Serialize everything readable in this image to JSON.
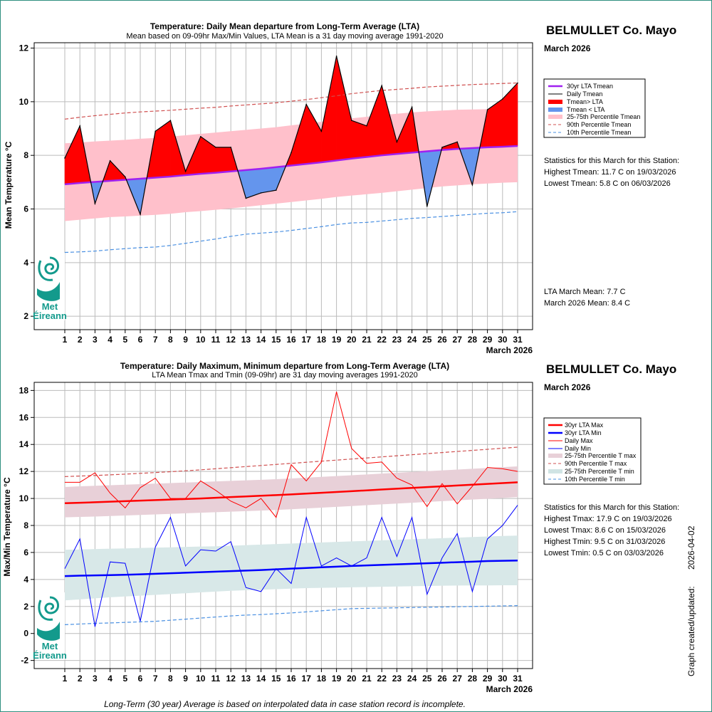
{
  "station": "BELMULLET Co. Mayo",
  "period_label": "March 2026",
  "footer_note": "Long-Term (30 year) Average is based on interpolated data in case station record is incomplete.",
  "created_label": "Graph created/updated:",
  "created_date": "2026-04-02",
  "logo": {
    "line1": "Met",
    "line2": "Éireann"
  },
  "colors": {
    "above": "#ff0000",
    "below": "#6495ed",
    "band_mean": "#ffc0cb",
    "lta_mean": "#a020f0",
    "max": "#ff0000",
    "min": "#0000ff",
    "band_max": "#e8d0d8",
    "band_min": "#d8e8e8",
    "p90": "#d05050",
    "p10": "#4a90e2"
  },
  "top": {
    "title": "Temperature: Daily Mean departure from Long-Term Average (LTA)",
    "subtitle": "Mean based on 09-09hr Max/Min Values, LTA Mean is a 31 day moving average 1991-2020",
    "stats_heading": "Statistics for this March for this Station:",
    "stats": [
      "Highest Tmean: 11.7 C on 19/03/2026",
      "Lowest Tmean: 5.8 C on 06/03/2026"
    ],
    "summary": [
      "LTA March Mean: 7.7 C",
      "March 2026 Mean: 8.4 C"
    ],
    "legend": [
      "30yr LTA Tmean",
      "Daily Tmean",
      "Tmean> LTA",
      "Tmean < LTA",
      "25-75th Percentile Tmean",
      "90th Percentile Tmean",
      "10th Percentile Tmean"
    ]
  },
  "bottom": {
    "title": "Temperature: Daily Maximum, Minimum departure from Long-Term Average (LTA)",
    "subtitle": "LTA Mean Tmax and Tmin (09-09hr) are 31 day moving averages 1991-2020",
    "stats_heading": "Statistics for this March for this Station:",
    "stats": [
      "Highest Tmax: 17.9 C on 19/03/2026",
      "Lowest Tmax: 8.6 C on 15/03/2026",
      "Highest Tmin: 9.5 C on 31/03/2026",
      "Lowest Tmin: 0.5 C on 03/03/2026"
    ],
    "legend": [
      "30yr LTA Max",
      "30yr LTA Min",
      "Daily Max",
      "Daily Min",
      "25-75th Percentile T max",
      "90th Percentile T max",
      "25-75th Percentile T min",
      "10th Percentile T min"
    ]
  },
  "chart_data": [
    {
      "type": "line",
      "title": "Temperature: Daily Mean departure from Long-Term Average (LTA)",
      "xlabel": "March 2026",
      "ylabel": "Mean Temperature °C",
      "ylim": [
        1.5,
        12.2
      ],
      "yticks": [
        2,
        4,
        6,
        8,
        10,
        12
      ],
      "x": [
        1,
        2,
        3,
        4,
        5,
        6,
        7,
        8,
        9,
        10,
        11,
        12,
        13,
        14,
        15,
        16,
        17,
        18,
        19,
        20,
        21,
        22,
        23,
        24,
        25,
        26,
        27,
        28,
        29,
        30,
        31
      ],
      "series": [
        {
          "name": "Daily Tmean",
          "values": [
            7.9,
            9.1,
            6.2,
            7.8,
            7.2,
            5.8,
            8.9,
            9.3,
            7.4,
            8.7,
            8.3,
            8.3,
            6.4,
            6.6,
            6.7,
            8.1,
            9.9,
            8.9,
            11.7,
            9.3,
            9.1,
            10.6,
            8.5,
            9.8,
            6.1,
            8.3,
            8.5,
            6.9,
            9.7,
            10.1,
            10.7
          ]
        },
        {
          "name": "30yr LTA Tmean",
          "values": [
            6.92,
            6.97,
            7.01,
            7.05,
            7.09,
            7.13,
            7.17,
            7.21,
            7.26,
            7.31,
            7.35,
            7.4,
            7.45,
            7.5,
            7.56,
            7.62,
            7.68,
            7.74,
            7.81,
            7.88,
            7.94,
            8.0,
            8.05,
            8.1,
            8.15,
            8.2,
            8.24,
            8.27,
            8.3,
            8.32,
            8.35
          ]
        },
        {
          "name": "25th Percentile Tmean",
          "values": [
            5.55,
            5.6,
            5.65,
            5.7,
            5.72,
            5.75,
            5.78,
            5.82,
            5.88,
            5.92,
            5.97,
            6.02,
            6.08,
            6.14,
            6.2,
            6.26,
            6.32,
            6.38,
            6.45,
            6.5,
            6.55,
            6.6,
            6.66,
            6.72,
            6.78,
            6.84,
            6.88,
            6.92,
            6.95,
            6.98,
            7.0
          ]
        },
        {
          "name": "75th Percentile Tmean",
          "values": [
            8.45,
            8.48,
            8.52,
            8.55,
            8.58,
            8.62,
            8.65,
            8.7,
            8.75,
            8.8,
            8.85,
            8.9,
            8.95,
            9.0,
            9.05,
            9.12,
            9.18,
            9.25,
            9.32,
            9.38,
            9.44,
            9.5,
            9.55,
            9.6,
            9.64,
            9.67,
            9.7,
            9.71,
            9.72,
            9.72,
            9.72
          ]
        },
        {
          "name": "90th Percentile Tmean",
          "values": [
            9.35,
            9.42,
            9.48,
            9.53,
            9.58,
            9.62,
            9.65,
            9.68,
            9.72,
            9.76,
            9.79,
            9.84,
            9.88,
            9.92,
            9.96,
            10.02,
            10.08,
            10.15,
            10.22,
            10.3,
            10.36,
            10.42,
            10.46,
            10.5,
            10.55,
            10.58,
            10.61,
            10.64,
            10.66,
            10.68,
            10.7
          ]
        },
        {
          "name": "10th Percentile Tmean",
          "values": [
            4.38,
            4.4,
            4.43,
            4.48,
            4.52,
            4.56,
            4.58,
            4.64,
            4.72,
            4.8,
            4.88,
            4.98,
            5.06,
            5.1,
            5.14,
            5.2,
            5.27,
            5.34,
            5.42,
            5.48,
            5.5,
            5.55,
            5.6,
            5.65,
            5.68,
            5.72,
            5.76,
            5.8,
            5.84,
            5.86,
            5.9
          ]
        }
      ]
    },
    {
      "type": "line",
      "title": "Temperature: Daily Maximum, Minimum departure from Long-Term Average (LTA)",
      "xlabel": "March 2026",
      "ylabel": "Max/Min Temperature °C",
      "ylim": [
        -2.6,
        18.6
      ],
      "yticks": [
        -2,
        0,
        2,
        4,
        6,
        8,
        10,
        12,
        14,
        16,
        18
      ],
      "x": [
        1,
        2,
        3,
        4,
        5,
        6,
        7,
        8,
        9,
        10,
        11,
        12,
        13,
        14,
        15,
        16,
        17,
        18,
        19,
        20,
        21,
        22,
        23,
        24,
        25,
        26,
        27,
        28,
        29,
        30,
        31
      ],
      "series": [
        {
          "name": "Daily Max",
          "values": [
            11.2,
            11.2,
            11.9,
            10.4,
            9.3,
            10.8,
            11.5,
            10.0,
            10.0,
            11.3,
            10.6,
            9.8,
            9.3,
            10.0,
            8.6,
            12.5,
            11.3,
            12.7,
            17.9,
            13.7,
            12.6,
            12.7,
            11.5,
            11.0,
            9.4,
            11.1,
            9.6,
            10.9,
            12.3,
            12.2,
            12.0
          ]
        },
        {
          "name": "Daily Min",
          "values": [
            4.8,
            7.0,
            0.5,
            5.3,
            5.2,
            0.9,
            6.4,
            8.6,
            5.0,
            6.2,
            6.1,
            6.8,
            3.4,
            3.1,
            4.8,
            3.7,
            8.6,
            5.0,
            5.6,
            5.0,
            5.6,
            8.6,
            5.7,
            8.6,
            2.9,
            5.6,
            7.4,
            3.1,
            7.0,
            8.0,
            9.5
          ]
        },
        {
          "name": "30yr LTA Max",
          "values": [
            9.65,
            9.68,
            9.72,
            9.76,
            9.8,
            9.84,
            9.88,
            9.92,
            9.96,
            10.0,
            10.05,
            10.1,
            10.15,
            10.2,
            10.25,
            10.3,
            10.36,
            10.42,
            10.48,
            10.54,
            10.6,
            10.66,
            10.72,
            10.78,
            10.84,
            10.9,
            10.96,
            11.02,
            11.08,
            11.14,
            11.2
          ]
        },
        {
          "name": "30yr LTA Min",
          "values": [
            4.25,
            4.28,
            4.3,
            4.32,
            4.35,
            4.38,
            4.42,
            4.46,
            4.5,
            4.54,
            4.58,
            4.62,
            4.66,
            4.7,
            4.75,
            4.8,
            4.85,
            4.9,
            4.95,
            5.0,
            5.04,
            5.08,
            5.12,
            5.16,
            5.2,
            5.24,
            5.28,
            5.32,
            5.36,
            5.38,
            5.4
          ]
        },
        {
          "name": "25th Percentile T max",
          "values": [
            8.6,
            8.63,
            8.66,
            8.7,
            8.74,
            8.78,
            8.82,
            8.86,
            8.9,
            8.94,
            8.98,
            9.02,
            9.06,
            9.1,
            9.15,
            9.2,
            9.26,
            9.32,
            9.38,
            9.44,
            9.5,
            9.56,
            9.62,
            9.68,
            9.74,
            9.8,
            9.86,
            9.92,
            9.98,
            10.04,
            10.1
          ]
        },
        {
          "name": "75th Percentile T max",
          "values": [
            10.85,
            10.9,
            10.94,
            10.98,
            11.02,
            11.06,
            11.1,
            11.14,
            11.18,
            11.22,
            11.26,
            11.3,
            11.34,
            11.38,
            11.43,
            11.48,
            11.54,
            11.6,
            11.66,
            11.72,
            11.78,
            11.84,
            11.9,
            11.96,
            12.02,
            12.08,
            12.14,
            12.2,
            12.26,
            12.32,
            12.38
          ]
        },
        {
          "name": "90th Percentile T max",
          "values": [
            11.62,
            11.66,
            11.7,
            11.75,
            11.8,
            11.86,
            11.92,
            11.98,
            12.05,
            12.12,
            12.2,
            12.28,
            12.36,
            12.44,
            12.52,
            12.6,
            12.68,
            12.76,
            12.84,
            12.92,
            13.0,
            13.08,
            13.16,
            13.24,
            13.32,
            13.4,
            13.48,
            13.56,
            13.64,
            13.72,
            13.8
          ]
        },
        {
          "name": "25th Percentile T min",
          "values": [
            2.45,
            2.52,
            2.6,
            2.68,
            2.74,
            2.8,
            2.86,
            2.92,
            2.98,
            3.04,
            3.1,
            3.16,
            3.2,
            3.24,
            3.28,
            3.32,
            3.36,
            3.38,
            3.4,
            3.42,
            3.44,
            3.46,
            3.48,
            3.5,
            3.52,
            3.54,
            3.55,
            3.56,
            3.56,
            3.57,
            3.57
          ]
        },
        {
          "name": "75th Percentile T min",
          "values": [
            6.2,
            6.22,
            6.25,
            6.28,
            6.3,
            6.33,
            6.36,
            6.38,
            6.41,
            6.44,
            6.46,
            6.5,
            6.54,
            6.58,
            6.62,
            6.66,
            6.7,
            6.74,
            6.78,
            6.82,
            6.86,
            6.9,
            6.94,
            6.98,
            7.02,
            7.06,
            7.1,
            7.14,
            7.18,
            7.22,
            7.25
          ]
        },
        {
          "name": "10th Percentile T min",
          "values": [
            0.65,
            0.7,
            0.75,
            0.78,
            0.82,
            0.86,
            0.9,
            0.98,
            1.06,
            1.14,
            1.22,
            1.3,
            1.36,
            1.4,
            1.46,
            1.52,
            1.6,
            1.68,
            1.76,
            1.84,
            1.86,
            1.88,
            1.9,
            1.92,
            1.94,
            1.96,
            1.98,
            2.0,
            2.02,
            2.04,
            2.06
          ]
        }
      ]
    }
  ]
}
